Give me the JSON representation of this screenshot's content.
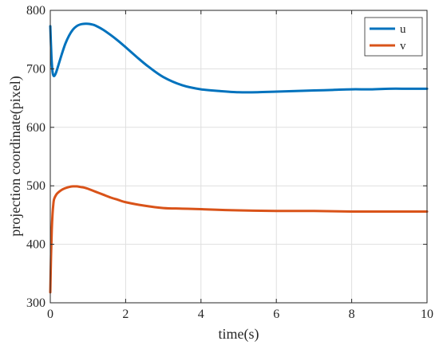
{
  "chart_data": {
    "type": "line",
    "xlabel": "time(s)",
    "ylabel": "projection coordinate(pixel)",
    "xlim": [
      0,
      10
    ],
    "ylim": [
      300,
      800
    ],
    "xticks": [
      0,
      2,
      4,
      6,
      8,
      10
    ],
    "yticks": [
      300,
      400,
      500,
      600,
      700,
      800
    ],
    "xtick_labels": [
      "0",
      "2",
      "4",
      "6",
      "8",
      "10"
    ],
    "ytick_labels": [
      "300",
      "400",
      "500",
      "600",
      "700",
      "800"
    ],
    "grid": true,
    "legend_position": "top-right",
    "series": [
      {
        "name": "u",
        "color": "#0072BD",
        "x": [
          0,
          0.03,
          0.06,
          0.09,
          0.12,
          0.15,
          0.2,
          0.3,
          0.4,
          0.5,
          0.6,
          0.7,
          0.8,
          0.9,
          1.0,
          1.1,
          1.2,
          1.4,
          1.6,
          1.8,
          2.0,
          2.3,
          2.6,
          3.0,
          3.5,
          4.0,
          4.5,
          5.0,
          5.5,
          6.0,
          6.5,
          7.0,
          7.5,
          8.0,
          8.5,
          9.0,
          9.5,
          10.0
        ],
        "values": [
          773,
          722,
          695,
          688,
          689,
          693,
          703,
          724,
          743,
          757,
          767,
          773,
          776,
          777,
          777,
          776,
          774,
          767,
          758,
          748,
          737,
          720,
          704,
          686,
          672,
          665,
          662,
          660,
          660,
          661,
          662,
          663,
          664,
          665,
          665,
          666,
          666,
          666
        ]
      },
      {
        "name": "v",
        "color": "#D95319",
        "x": [
          0,
          0.02,
          0.04,
          0.06,
          0.08,
          0.1,
          0.15,
          0.2,
          0.3,
          0.4,
          0.5,
          0.6,
          0.7,
          0.8,
          0.9,
          1.0,
          1.2,
          1.4,
          1.6,
          1.8,
          2.0,
          2.5,
          3.0,
          3.5,
          4.0,
          5.0,
          6.0,
          7.0,
          8.0,
          9.0,
          10.0
        ],
        "values": [
          318,
          380,
          425,
          452,
          468,
          477,
          484,
          488,
          493,
          496,
          498,
          499,
          499,
          498,
          497,
          495,
          490,
          485,
          480,
          476,
          472,
          466,
          462,
          461,
          460,
          458,
          457,
          457,
          456,
          456,
          456
        ]
      }
    ]
  }
}
